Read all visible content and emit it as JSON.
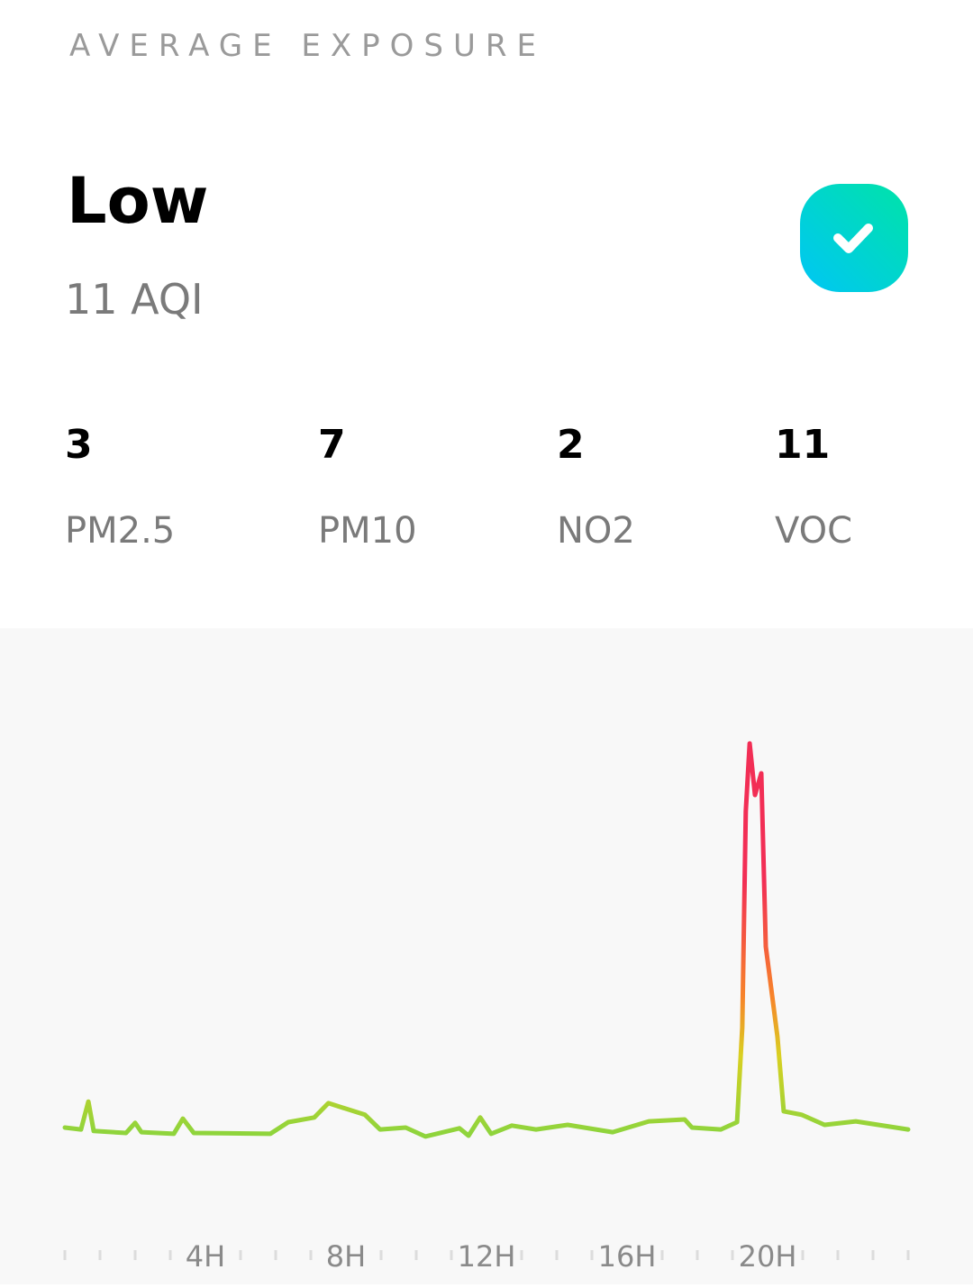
{
  "header": {
    "title": "AVERAGE EXPOSURE"
  },
  "summary": {
    "level": "Low",
    "aqi": "11 AQI"
  },
  "metrics": [
    {
      "value": 3,
      "label": "PM2.5"
    },
    {
      "value": 7,
      "label": "PM10"
    },
    {
      "value": 2,
      "label": "NO2"
    },
    {
      "value": 11,
      "label": "VOC"
    }
  ],
  "chart_data": {
    "type": "line",
    "x": [
      0,
      0.46,
      0.67,
      0.82,
      1.74,
      2.0,
      2.18,
      3.1,
      3.36,
      3.67,
      5.85,
      6.36,
      7.1,
      7.5,
      8.54,
      8.97,
      9.7,
      10.26,
      11.23,
      11.49,
      11.82,
      12.13,
      12.72,
      13.41,
      14.31,
      15.59,
      16.62,
      17.64,
      17.85,
      18.67,
      19.13,
      19.28,
      19.38,
      19.49,
      19.64,
      19.82,
      19.95,
      20.28,
      20.46,
      20.97,
      21.62,
      22.51,
      24
    ],
    "values": [
      11.4,
      10.9,
      18.1,
      10.5,
      10,
      12.6,
      10.2,
      9.8,
      13.7,
      10,
      9.8,
      12.8,
      14,
      17.7,
      14.7,
      10.9,
      11.4,
      9.1,
      11.2,
      9.3,
      14,
      9.8,
      11.9,
      10.9,
      12.1,
      10.2,
      13,
      13.5,
      11.4,
      10.9,
      12.8,
      37.2,
      93,
      110.5,
      97.2,
      102.8,
      58.1,
      34.9,
      15.6,
      14.7,
      12.1,
      13,
      10.9
    ],
    "xlim": [
      0,
      24
    ],
    "ylim": [
      0,
      120
    ],
    "xticks": [
      0,
      1,
      2,
      3,
      {
        "value": 4,
        "label": "4H"
      },
      5,
      6,
      7,
      {
        "value": 8,
        "label": "8H"
      },
      9,
      10,
      11,
      {
        "value": 12,
        "label": "12H"
      },
      13,
      14,
      15,
      {
        "value": 16,
        "label": "16H"
      },
      17,
      18,
      19,
      {
        "value": 20,
        "label": "20H"
      },
      21,
      22,
      23,
      24
    ],
    "color_stops": [
      {
        "value": 10,
        "color": "#8fd43c"
      },
      {
        "value": 30,
        "color": "#d9d021"
      },
      {
        "value": 45,
        "color": "#f7842a"
      },
      {
        "value": 75,
        "color": "#f22e55"
      }
    ]
  }
}
